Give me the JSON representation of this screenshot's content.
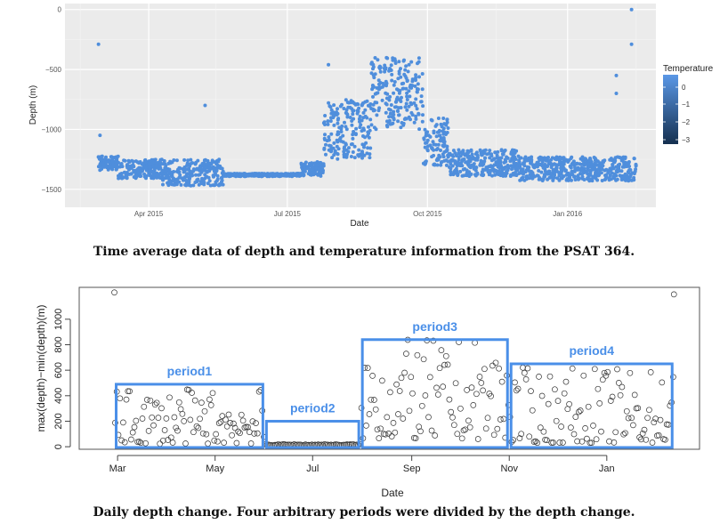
{
  "chart_data": [
    {
      "type": "scatter",
      "xlabel": "Date",
      "ylabel": "Depth (m)",
      "ylim": [
        -1600,
        0
      ],
      "grid": true,
      "x_ticks": [
        "Apr 2015",
        "Jul 2015",
        "Oct 2015",
        "Jan 2016"
      ],
      "y_ticks": [
        "0",
        "−500",
        "−1000",
        "−1500"
      ],
      "legend": {
        "title": "Temperature",
        "ticks": [
          "0",
          "−1",
          "−2",
          "−3"
        ],
        "placement": "right",
        "color_high": "#5a97e6",
        "color_low": "#15304f"
      },
      "colors": {
        "panel": "#ebebeb",
        "grid": "#ffffff",
        "point": "#4f8edc"
      },
      "segments": [
        {
          "from": "2015-02-27",
          "to": "2015-03-12",
          "depth": -1280,
          "spread": 60
        },
        {
          "from": "2015-03-12",
          "to": "2015-04-10",
          "depth": -1330,
          "spread": 80
        },
        {
          "from": "2015-04-10",
          "to": "2015-05-20",
          "depth": -1360,
          "spread": 110
        },
        {
          "from": "2015-05-20",
          "to": "2015-07-10",
          "depth": -1380,
          "spread": 12
        },
        {
          "from": "2015-07-10",
          "to": "2015-07-25",
          "depth": -1330,
          "spread": 60
        },
        {
          "from": "2015-07-25",
          "to": "2015-08-25",
          "depth": -1000,
          "spread": 250
        },
        {
          "from": "2015-08-25",
          "to": "2015-09-28",
          "depth": -700,
          "spread": 300
        },
        {
          "from": "2015-09-28",
          "to": "2015-10-15",
          "depth": -1100,
          "spread": 200
        },
        {
          "from": "2015-10-15",
          "to": "2015-11-30",
          "depth": -1280,
          "spread": 110
        },
        {
          "from": "2015-11-30",
          "to": "2016-02-15",
          "depth": -1330,
          "spread": 100
        }
      ],
      "outliers": [
        {
          "x": "2015-02-27",
          "y": -290
        },
        {
          "x": "2015-02-28",
          "y": -1050
        },
        {
          "x": "2016-02-12",
          "y": 0
        },
        {
          "x": "2016-02-12",
          "y": -290
        },
        {
          "x": "2016-02-02",
          "y": -550
        },
        {
          "x": "2016-02-02",
          "y": -700
        },
        {
          "x": "2015-05-08",
          "y": -800
        },
        {
          "x": "2015-07-28",
          "y": -460
        }
      ]
    },
    {
      "type": "scatter",
      "xlabel": "Date",
      "ylabel": "max(depth)−min(depth)(m)",
      "ylim": [
        -20,
        1250
      ],
      "x_ticks": [
        "Mar",
        "May",
        "Jul",
        "Sep",
        "Nov",
        "Jan"
      ],
      "y_ticks": [
        "0",
        "200",
        "400",
        "600",
        "800",
        "1000"
      ],
      "series": [
        {
          "name": "period1",
          "from": "2015-02-27",
          "to": "2015-06-01",
          "max": 490,
          "level": 80,
          "spread": 100
        },
        {
          "name": "period2",
          "from": "2015-06-01",
          "to": "2015-07-31",
          "max": 200,
          "level": 15,
          "spread": 10
        },
        {
          "name": "period3",
          "from": "2015-07-31",
          "to": "2015-11-01",
          "max": 840,
          "level": 200,
          "spread": 300
        },
        {
          "name": "period4",
          "from": "2015-11-01",
          "to": "2016-02-12",
          "max": 650,
          "level": 100,
          "spread": 130
        }
      ],
      "outliers": [
        {
          "x": "2015-02-27",
          "y": 1210
        },
        {
          "x": "2016-02-12",
          "y": 1195
        }
      ],
      "colors": {
        "box": "#4a8fe8",
        "label": "#4a8fe8",
        "point": "#333333"
      }
    }
  ],
  "captions": {
    "top": "Time average data of depth and temperature information from the PSAT 364.",
    "bottom": "Daily depth change. Four arbitrary periods were divided by the depth change."
  }
}
